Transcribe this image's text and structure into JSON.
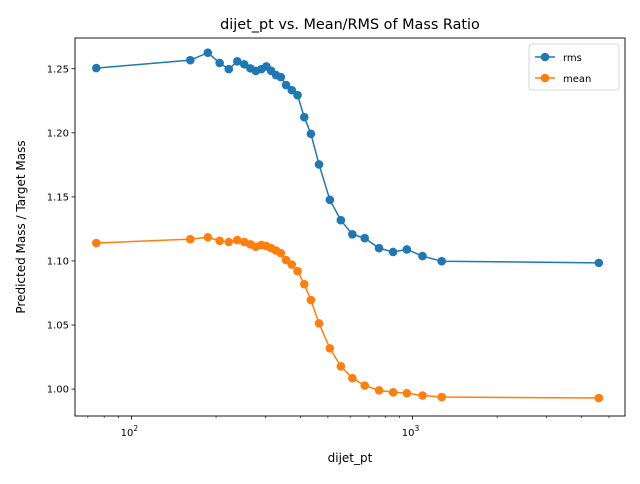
{
  "chart_data": {
    "type": "line",
    "title": "dijet_pt vs. Mean/RMS of Mass Ratio",
    "xlabel": "dijet_pt",
    "ylabel": "Predicted Mass / Target Mass",
    "x_scale": "log",
    "xlim": [
      63,
      5700
    ],
    "ylim": [
      0.979,
      1.274
    ],
    "x_ticks": [
      {
        "value": 100,
        "label": "10",
        "exp": "2"
      },
      {
        "value": 1000,
        "label": "10",
        "exp": "3"
      }
    ],
    "y_ticks": [
      {
        "value": 1.0,
        "label": "1.00"
      },
      {
        "value": 1.05,
        "label": "1.05"
      },
      {
        "value": 1.1,
        "label": "1.10"
      },
      {
        "value": 1.15,
        "label": "1.15"
      },
      {
        "value": 1.2,
        "label": "1.20"
      },
      {
        "value": 1.25,
        "label": "1.25"
      }
    ],
    "grid": false,
    "legend_position": "top-right",
    "x": [
      75,
      162,
      187,
      206,
      222,
      238,
      252,
      265,
      277,
      290,
      302,
      314,
      327,
      340,
      355,
      372,
      390,
      412,
      435,
      465,
      508,
      556,
      611,
      676,
      760,
      853,
      955,
      1085,
      1270,
      4600
    ],
    "series": [
      {
        "name": "rms",
        "color": "#1f77b4",
        "values": [
          1.2505,
          1.2567,
          1.2625,
          1.2545,
          1.2497,
          1.2558,
          1.2535,
          1.2503,
          1.2483,
          1.2497,
          1.2518,
          1.2484,
          1.2451,
          1.2435,
          1.2373,
          1.2333,
          1.2294,
          1.2122,
          1.1992,
          1.1753,
          1.1477,
          1.1318,
          1.1208,
          1.1178,
          1.11,
          1.107,
          1.109,
          1.1038,
          1.0998,
          1.0985
        ]
      },
      {
        "name": "mean",
        "color": "#ff7f0e",
        "values": [
          1.114,
          1.117,
          1.1185,
          1.1157,
          1.1148,
          1.1163,
          1.1148,
          1.113,
          1.1111,
          1.1125,
          1.1116,
          1.11,
          1.1081,
          1.1061,
          1.1007,
          1.0972,
          1.092,
          1.0819,
          1.0695,
          1.0513,
          1.0318,
          1.0178,
          1.0085,
          1.0028,
          0.999,
          0.9975,
          0.9968,
          0.995,
          0.9938,
          0.993
        ]
      }
    ]
  }
}
